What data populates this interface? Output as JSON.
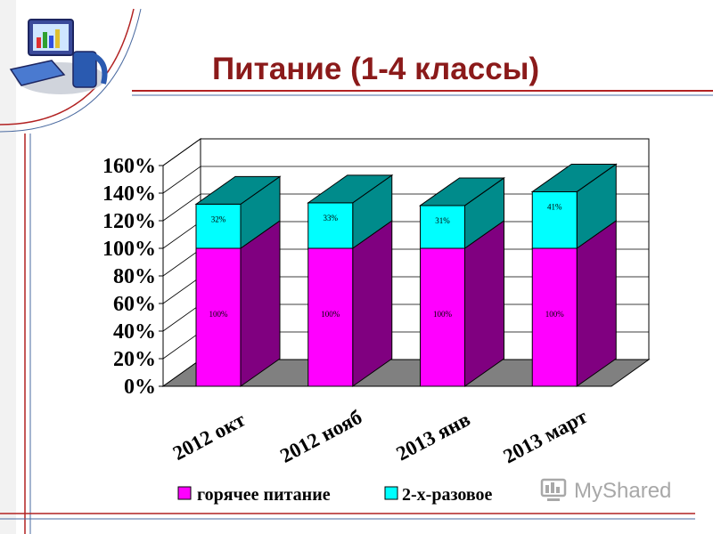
{
  "slide": {
    "title": "Питание  (1-4 классы)",
    "watermark": "MyShared"
  },
  "colors": {
    "title": "#8b1a1a",
    "accent_line": "#b22222",
    "hot_meal_front": "#ff00ff",
    "hot_meal_side": "#800080",
    "twice_meal_front": "#00ffff",
    "twice_meal_side": "#008b8b",
    "floor": "#808080"
  },
  "chart_data": {
    "type": "bar",
    "stacked": true,
    "three_d": true,
    "categories": [
      "2012 окт",
      "2012 нояб",
      "2013 янв",
      "2013 март"
    ],
    "series": [
      {
        "name": "горячее питание",
        "values": [
          100,
          100,
          100,
          100
        ],
        "labels": [
          "100%",
          "100%",
          "100%",
          "100%"
        ]
      },
      {
        "name": "2-х-разовое",
        "values": [
          32,
          33,
          31,
          41
        ],
        "labels": [
          "32%",
          "33%",
          "31%",
          "41%"
        ]
      }
    ],
    "y_ticks": [
      "0%",
      "20%",
      "40%",
      "60%",
      "80%",
      "100%",
      "120%",
      "140%",
      "160%"
    ],
    "ylim": [
      0,
      160
    ],
    "grid": true,
    "legend_position": "bottom"
  }
}
